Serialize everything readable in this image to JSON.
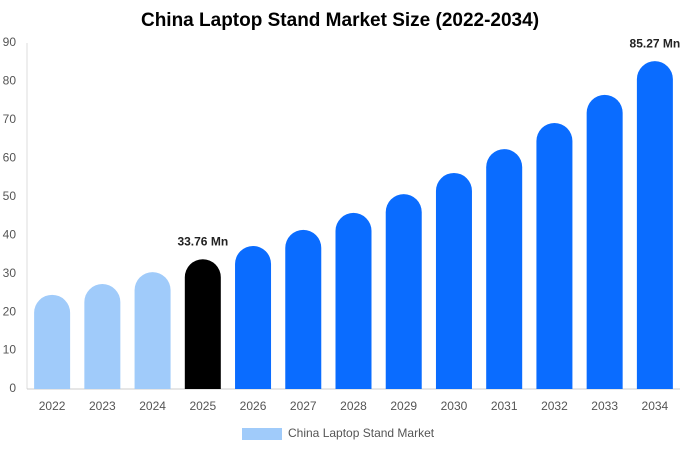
{
  "chart_data": {
    "type": "bar",
    "title": "China Laptop Stand Market  Size (2022-2034)",
    "categories": [
      "2022",
      "2023",
      "2024",
      "2025",
      "2026",
      "2027",
      "2028",
      "2029",
      "2030",
      "2031",
      "2032",
      "2033",
      "2034"
    ],
    "series": [
      {
        "name": "China Laptop Stand Market",
        "color": "#a0cbfa",
        "values": [
          24.5,
          27.3,
          30.4,
          33.76,
          37.2,
          41.4,
          45.8,
          50.7,
          56.2,
          62.4,
          69.2,
          76.5,
          85.27
        ],
        "value_labels": [
          null,
          null,
          null,
          "33.76 Mn",
          null,
          null,
          null,
          null,
          null,
          null,
          null,
          null,
          "85.27 Mn"
        ],
        "colors": [
          "#a0cbfa",
          "#a0cbfa",
          "#a0cbfa",
          "#000000",
          "#0a6cff",
          "#0a6cff",
          "#0a6cff",
          "#0a6cff",
          "#0a6cff",
          "#0a6cff",
          "#0a6cff",
          "#0a6cff",
          "#0a6cff"
        ]
      }
    ],
    "ylim": [
      0,
      90
    ],
    "yticks": [
      0,
      10,
      20,
      30,
      40,
      50,
      60,
      70,
      80,
      90
    ],
    "grid": false,
    "legend": "bottom"
  }
}
